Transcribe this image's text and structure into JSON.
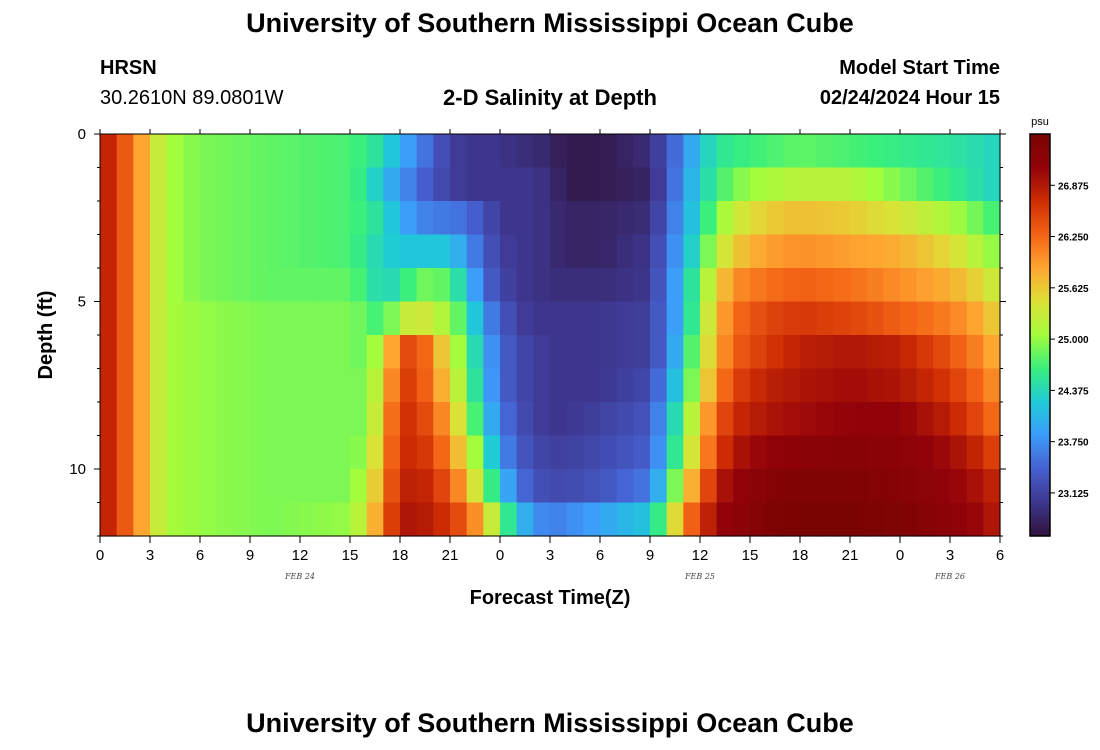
{
  "page": {
    "title": "University of Southern Mississippi Ocean Cube",
    "footer_title": "University of Southern Mississippi Ocean Cube"
  },
  "station": {
    "name": "HRSN",
    "coords": "30.2610N  89.0801W"
  },
  "plot_title": "2-D Salinity at Depth",
  "model": {
    "label": "Model Start Time",
    "value": "02/24/2024 Hour 15"
  },
  "colors": {
    "palette": [
      "#30123b",
      "#3e378f",
      "#4660d0",
      "#3d9bfb",
      "#1fcad7",
      "#38ef7d",
      "#a3fc3c",
      "#dce137",
      "#fea531",
      "#f36315",
      "#ce2d04",
      "#92020a",
      "#7a0403"
    ]
  },
  "chart_data": {
    "type": "heatmap",
    "title": "2-D Salinity at Depth",
    "xlabel": "Forecast Time(Z)",
    "ylabel": "Depth (ft)",
    "x_tick_labels": [
      "0",
      "3",
      "6",
      "9",
      "12",
      "15",
      "18",
      "21",
      "0",
      "3",
      "6",
      "9",
      "12",
      "15",
      "18",
      "21",
      "0",
      "3",
      "6"
    ],
    "x_range_hours": [
      0,
      54
    ],
    "date_labels": [
      {
        "text": "FEB 24",
        "hour": 12
      },
      {
        "text": "FEB 25",
        "hour": 36
      },
      {
        "text": "FEB 26",
        "hour": 51
      }
    ],
    "y_tick_labels": [
      "0",
      "5",
      "10"
    ],
    "y_range_ft": [
      0,
      12
    ],
    "colorbar": {
      "unit": "psu",
      "range": [
        22.6,
        27.5
      ],
      "labels": [
        "26.875",
        "26.250",
        "25.625",
        "25.000",
        "24.375",
        "23.750",
        "23.125"
      ]
    },
    "depth_rows_ft": [
      0.5,
      1.5,
      2.5,
      3.5,
      4.5,
      5.5,
      6.5,
      7.5,
      8.5,
      9.5,
      10.5,
      11.5
    ],
    "time_keypoints_hours": [
      0,
      1,
      2,
      3,
      4,
      6,
      10,
      15,
      16,
      17,
      18,
      19,
      20,
      21,
      22,
      23,
      24,
      25,
      26,
      27,
      28,
      30,
      33,
      34,
      35,
      36,
      37,
      38,
      40,
      42,
      45,
      48,
      51,
      53,
      54
    ],
    "salinity_psu": [
      [
        27.0,
        26.5,
        26.2,
        25.5,
        25.1,
        24.9,
        24.8,
        24.7,
        24.6,
        24.4,
        24.0,
        23.7,
        23.4,
        23.1,
        23.0,
        23.0,
        23.0,
        22.9,
        22.9,
        22.8,
        22.7,
        22.7,
        22.9,
        23.3,
        23.7,
        24.2,
        24.5,
        24.6,
        24.7,
        24.8,
        24.7,
        24.6,
        24.5,
        24.4,
        24.3
      ],
      [
        27.0,
        26.5,
        26.2,
        25.5,
        25.1,
        24.9,
        24.8,
        24.7,
        24.5,
        24.1,
        23.8,
        23.5,
        23.3,
        23.1,
        23.0,
        23.0,
        23.0,
        23.0,
        23.0,
        22.9,
        22.7,
        22.7,
        22.8,
        23.3,
        23.8,
        24.3,
        24.6,
        24.9,
        25.1,
        25.2,
        25.2,
        24.9,
        24.6,
        24.4,
        24.3
      ],
      [
        27.0,
        26.5,
        26.2,
        25.5,
        25.1,
        24.9,
        24.8,
        24.7,
        24.6,
        24.4,
        24.0,
        23.7,
        23.6,
        23.6,
        23.5,
        23.3,
        23.0,
        23.0,
        23.0,
        22.9,
        22.8,
        22.8,
        22.9,
        23.4,
        23.9,
        24.4,
        24.9,
        25.3,
        25.6,
        25.7,
        25.6,
        25.4,
        25.1,
        24.8,
        24.6
      ],
      [
        27.0,
        26.5,
        26.2,
        25.5,
        25.1,
        24.9,
        24.8,
        24.7,
        24.5,
        24.3,
        24.2,
        24.2,
        24.2,
        24.2,
        23.8,
        23.4,
        23.1,
        23.0,
        23.0,
        22.9,
        22.8,
        22.8,
        23.0,
        23.5,
        24.0,
        24.6,
        25.2,
        25.6,
        25.9,
        26.0,
        25.9,
        25.8,
        25.5,
        25.1,
        24.9
      ],
      [
        27.0,
        26.5,
        26.2,
        25.5,
        25.1,
        24.9,
        24.8,
        24.8,
        24.6,
        24.3,
        24.5,
        24.8,
        24.9,
        24.7,
        24.2,
        23.5,
        23.2,
        23.0,
        23.0,
        22.9,
        22.9,
        22.9,
        23.0,
        23.6,
        24.1,
        24.9,
        25.5,
        26.0,
        26.2,
        26.3,
        26.2,
        26.0,
        25.8,
        25.5,
        25.2
      ],
      [
        27.0,
        26.5,
        26.2,
        25.5,
        25.1,
        25.0,
        24.9,
        24.9,
        24.8,
        24.6,
        25.2,
        25.4,
        25.3,
        25.0,
        24.6,
        23.8,
        23.4,
        23.1,
        23.0,
        23.0,
        23.0,
        23.0,
        23.1,
        23.6,
        24.1,
        25.0,
        25.7,
        26.2,
        26.5,
        26.6,
        26.5,
        26.3,
        26.1,
        25.8,
        25.5
      ],
      [
        27.0,
        26.5,
        26.2,
        25.5,
        25.1,
        25.0,
        24.9,
        24.9,
        24.8,
        25.3,
        26.4,
        26.5,
        26.0,
        25.3,
        24.8,
        24.0,
        23.5,
        23.2,
        23.1,
        23.0,
        23.0,
        23.0,
        23.1,
        23.6,
        24.3,
        25.2,
        25.8,
        26.3,
        26.6,
        26.8,
        26.9,
        26.8,
        26.4,
        26.0,
        25.7
      ],
      [
        27.0,
        26.5,
        26.2,
        25.5,
        25.1,
        25.0,
        24.9,
        24.9,
        24.9,
        25.5,
        26.6,
        26.5,
        26.1,
        25.5,
        24.9,
        24.1,
        23.5,
        23.2,
        23.1,
        23.0,
        23.0,
        23.0,
        23.2,
        23.8,
        24.5,
        25.3,
        26.0,
        26.5,
        26.8,
        26.9,
        27.0,
        26.9,
        26.6,
        26.2,
        25.9
      ],
      [
        27.0,
        26.5,
        26.2,
        25.5,
        25.1,
        25.0,
        24.9,
        24.9,
        24.9,
        25.7,
        26.7,
        26.6,
        26.3,
        25.8,
        25.1,
        24.3,
        23.6,
        23.3,
        23.1,
        23.0,
        23.0,
        23.1,
        23.3,
        24.0,
        24.8,
        25.6,
        26.3,
        26.7,
        26.9,
        27.0,
        27.1,
        27.1,
        26.8,
        26.4,
        26.1
      ],
      [
        27.0,
        26.5,
        26.2,
        25.5,
        25.1,
        25.0,
        24.9,
        24.9,
        25.0,
        25.9,
        26.7,
        26.7,
        26.5,
        26.0,
        25.4,
        24.7,
        23.8,
        23.4,
        23.2,
        23.1,
        23.1,
        23.2,
        23.4,
        24.1,
        25.0,
        25.8,
        26.5,
        26.9,
        27.1,
        27.2,
        27.3,
        27.2,
        27.0,
        26.7,
        26.4
      ],
      [
        27.0,
        26.5,
        26.2,
        25.5,
        25.1,
        25.0,
        24.9,
        24.9,
        25.2,
        26.0,
        26.8,
        26.8,
        26.7,
        26.3,
        25.8,
        25.0,
        24.2,
        23.6,
        23.3,
        23.2,
        23.2,
        23.3,
        23.6,
        24.4,
        25.4,
        26.2,
        26.8,
        27.1,
        27.3,
        27.4,
        27.4,
        27.3,
        27.1,
        26.9,
        26.7
      ],
      [
        27.0,
        26.5,
        26.2,
        25.5,
        25.1,
        25.0,
        24.9,
        25.0,
        25.4,
        26.2,
        26.9,
        26.9,
        26.8,
        26.6,
        26.3,
        25.7,
        24.9,
        24.2,
        23.8,
        23.6,
        23.7,
        23.9,
        24.2,
        25.0,
        26.0,
        26.6,
        27.0,
        27.2,
        27.4,
        27.5,
        27.5,
        27.4,
        27.2,
        27.0,
        26.8
      ]
    ]
  },
  "axis": {
    "xlabel": "Forecast Time(Z)",
    "ylabel": "Depth (ft)",
    "colorbar_unit": "psu"
  }
}
